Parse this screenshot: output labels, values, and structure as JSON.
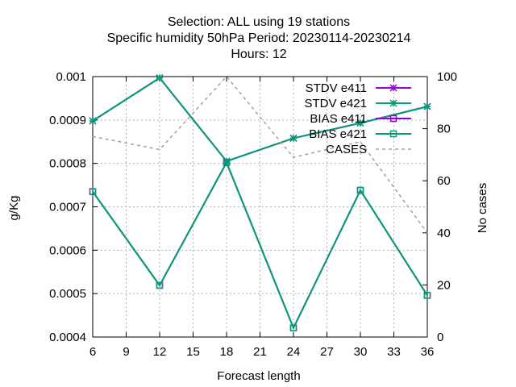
{
  "chart_data": {
    "type": "line",
    "title_lines": [
      "Selection: ALL using    19 stations",
      "Specific humidity 50hPa   Period: 20230114-20230214",
      "Hours:  12"
    ],
    "xlabel": "Forecast length",
    "ylabel": "g/Kg",
    "y2label": "No cases",
    "x_ticks": [
      "6",
      "9",
      "12",
      "15",
      "18",
      "21",
      "24",
      "27",
      "30",
      "33",
      "36"
    ],
    "y_ticks": [
      "0.0004",
      "0.0005",
      "0.0006",
      "0.0007",
      "0.0008",
      "0.0009",
      "0.001"
    ],
    "y2_ticks": [
      "0",
      "20",
      "40",
      "60",
      "80",
      "100"
    ],
    "xlim": [
      6,
      36
    ],
    "ylim": [
      0.0004,
      0.001
    ],
    "y2lim": [
      0,
      100
    ],
    "grid": true,
    "legend_position": "top-right",
    "x": [
      6,
      12,
      18,
      24,
      30,
      36
    ],
    "series": [
      {
        "name": "STDV e411",
        "axis": "y",
        "marker": "star",
        "color": "#9400d3",
        "dash": "",
        "values": [
          0.000898,
          0.000997,
          0.000805,
          0.000858,
          0.000893,
          0.000931
        ]
      },
      {
        "name": "STDV e421",
        "axis": "y",
        "marker": "star",
        "color": "#009e73",
        "dash": "",
        "values": [
          0.000898,
          0.000997,
          0.000805,
          0.000858,
          0.000893,
          0.000931
        ]
      },
      {
        "name": "BIAS e411",
        "axis": "y",
        "marker": "square",
        "color": "#9400d3",
        "dash": "",
        "values": [
          0.000735,
          0.000519,
          0.000802,
          0.000421,
          0.000738,
          0.000496
        ]
      },
      {
        "name": "BIAS e421",
        "axis": "y",
        "marker": "square",
        "color": "#009e73",
        "dash": "",
        "values": [
          0.000735,
          0.000519,
          0.000802,
          0.000421,
          0.000738,
          0.000496
        ]
      },
      {
        "name": "CASES",
        "axis": "y2",
        "marker": "none",
        "color": "#a0a0a0",
        "dash": "4,4",
        "values": [
          77,
          72,
          100,
          69,
          75,
          40
        ]
      }
    ]
  }
}
